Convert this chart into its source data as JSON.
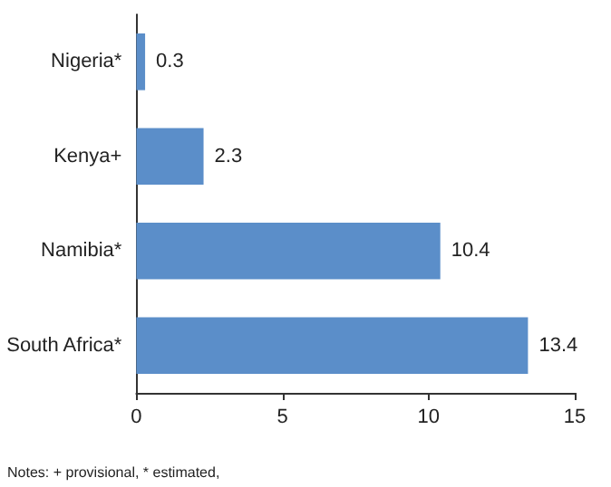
{
  "chart_data": {
    "type": "bar",
    "orientation": "horizontal",
    "categories": [
      "Nigeria*",
      "Kenya+",
      "Namibia*",
      "South Africa*"
    ],
    "values": [
      0.3,
      2.3,
      10.4,
      13.4
    ],
    "color": "#5b8ec9",
    "xlim": [
      0,
      15
    ],
    "xticks": [
      0,
      5,
      10,
      15
    ],
    "data_labels": true,
    "grid": false,
    "annotations": [
      "Notes: + provisional, * estimated,"
    ]
  }
}
